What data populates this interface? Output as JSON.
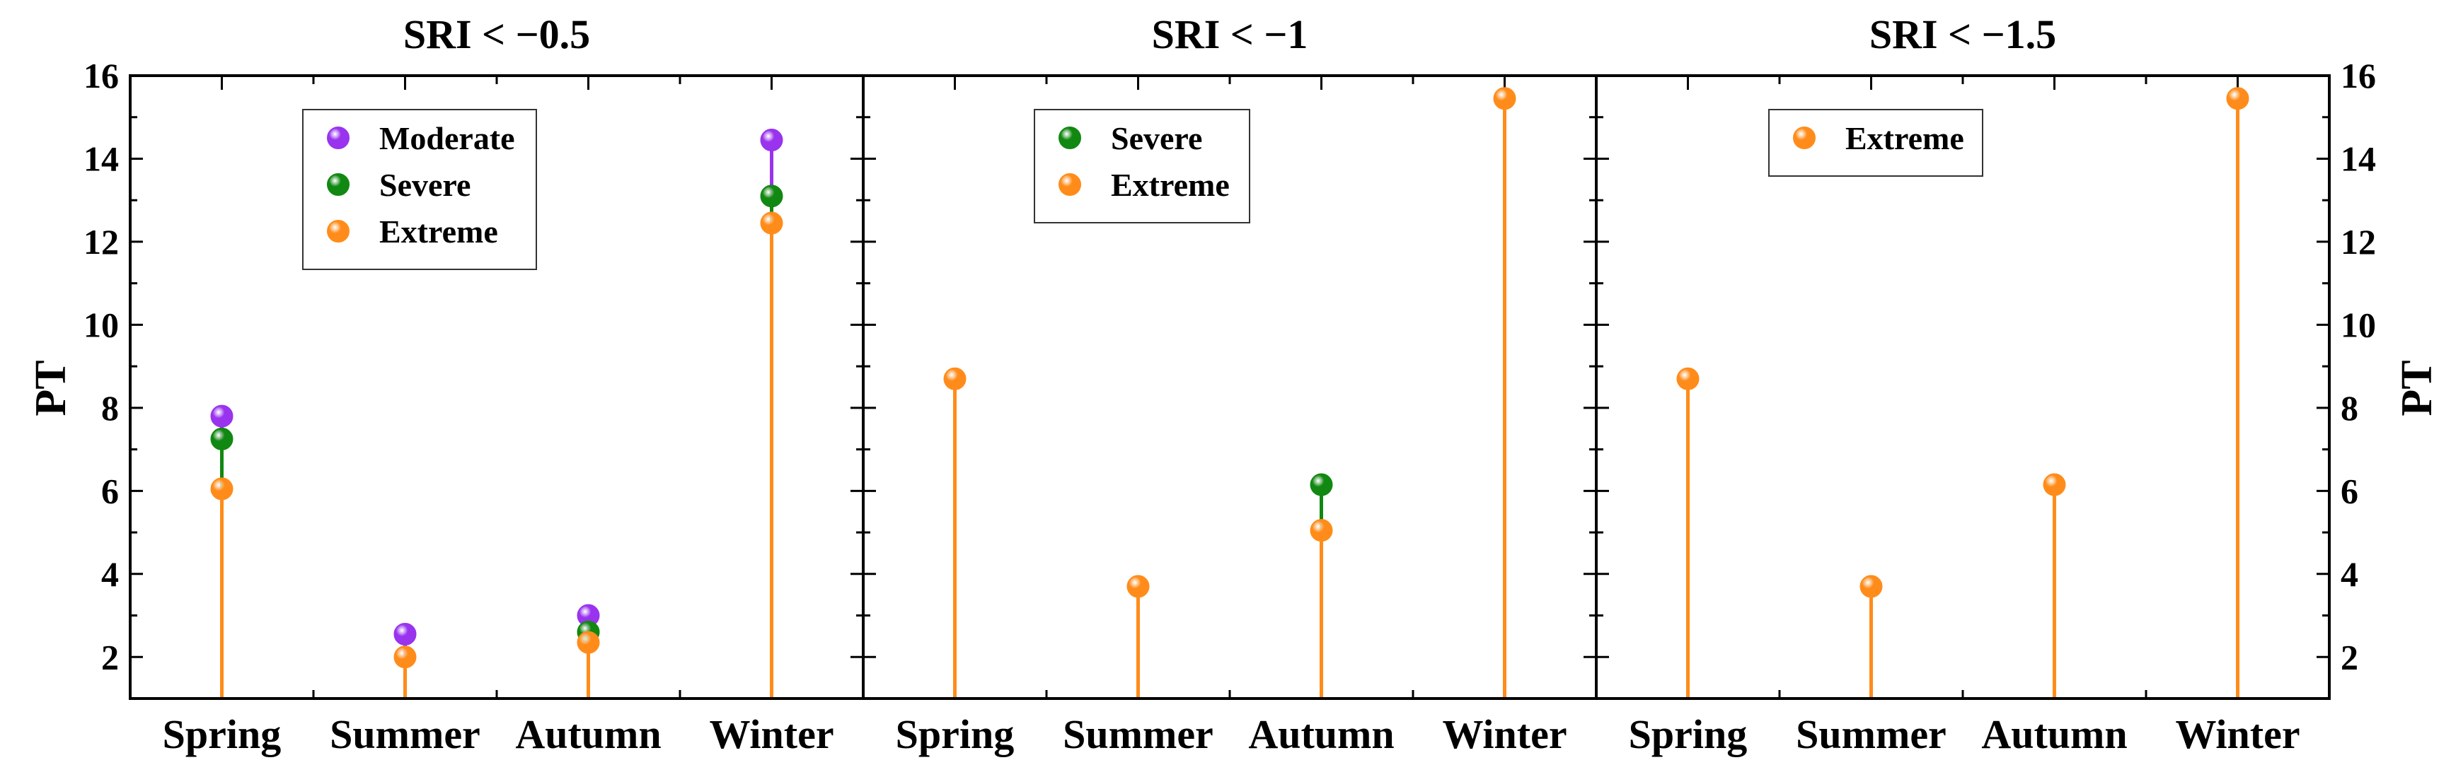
{
  "chart_data": {
    "type": "lollipop",
    "ylabel": "PT",
    "ylim": [
      1,
      16
    ],
    "yticks": [
      2,
      4,
      6,
      8,
      10,
      12,
      14,
      16
    ],
    "categories": [
      "Spring",
      "Summer",
      "Autumn",
      "Winter"
    ],
    "colors": {
      "Moderate": "#9933ee",
      "Severe": "#118811",
      "Extreme": "#ff8c1a"
    },
    "panels": [
      {
        "title": "SRI < −0.5",
        "legend": [
          "Moderate",
          "Severe",
          "Extreme"
        ],
        "series": [
          {
            "name": "Moderate",
            "values": [
              7.8,
              2.55,
              3.0,
              14.45
            ]
          },
          {
            "name": "Severe",
            "values": [
              7.25,
              null,
              2.6,
              13.1
            ]
          },
          {
            "name": "Extreme",
            "values": [
              6.05,
              2.0,
              2.35,
              12.45
            ]
          }
        ]
      },
      {
        "title": "SRI < −1",
        "legend": [
          "Severe",
          "Extreme"
        ],
        "series": [
          {
            "name": "Severe",
            "values": [
              null,
              null,
              6.15,
              null
            ]
          },
          {
            "name": "Extreme",
            "values": [
              8.7,
              3.7,
              5.05,
              15.45
            ]
          }
        ]
      },
      {
        "title": "SRI < −1.5",
        "legend": [
          "Extreme"
        ],
        "series": [
          {
            "name": "Extreme",
            "values": [
              8.7,
              3.7,
              6.15,
              15.45
            ]
          }
        ]
      }
    ]
  }
}
